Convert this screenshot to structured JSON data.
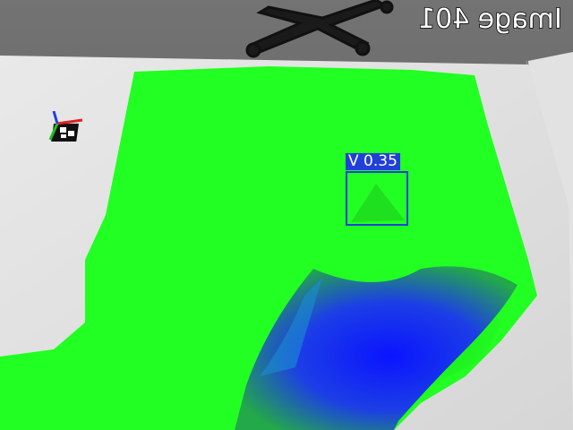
{
  "image_label": "Image 401",
  "detection": {
    "label": "V 0.35"
  },
  "colors": {
    "floor": "#6a6a6a",
    "table": "#e6e6e6",
    "mesh_green": "#22ff22",
    "mesh_blue": "#1a2ee0",
    "box_blue": "#2040d8"
  },
  "icons": {
    "marker": "aruco-marker-axes-icon"
  }
}
